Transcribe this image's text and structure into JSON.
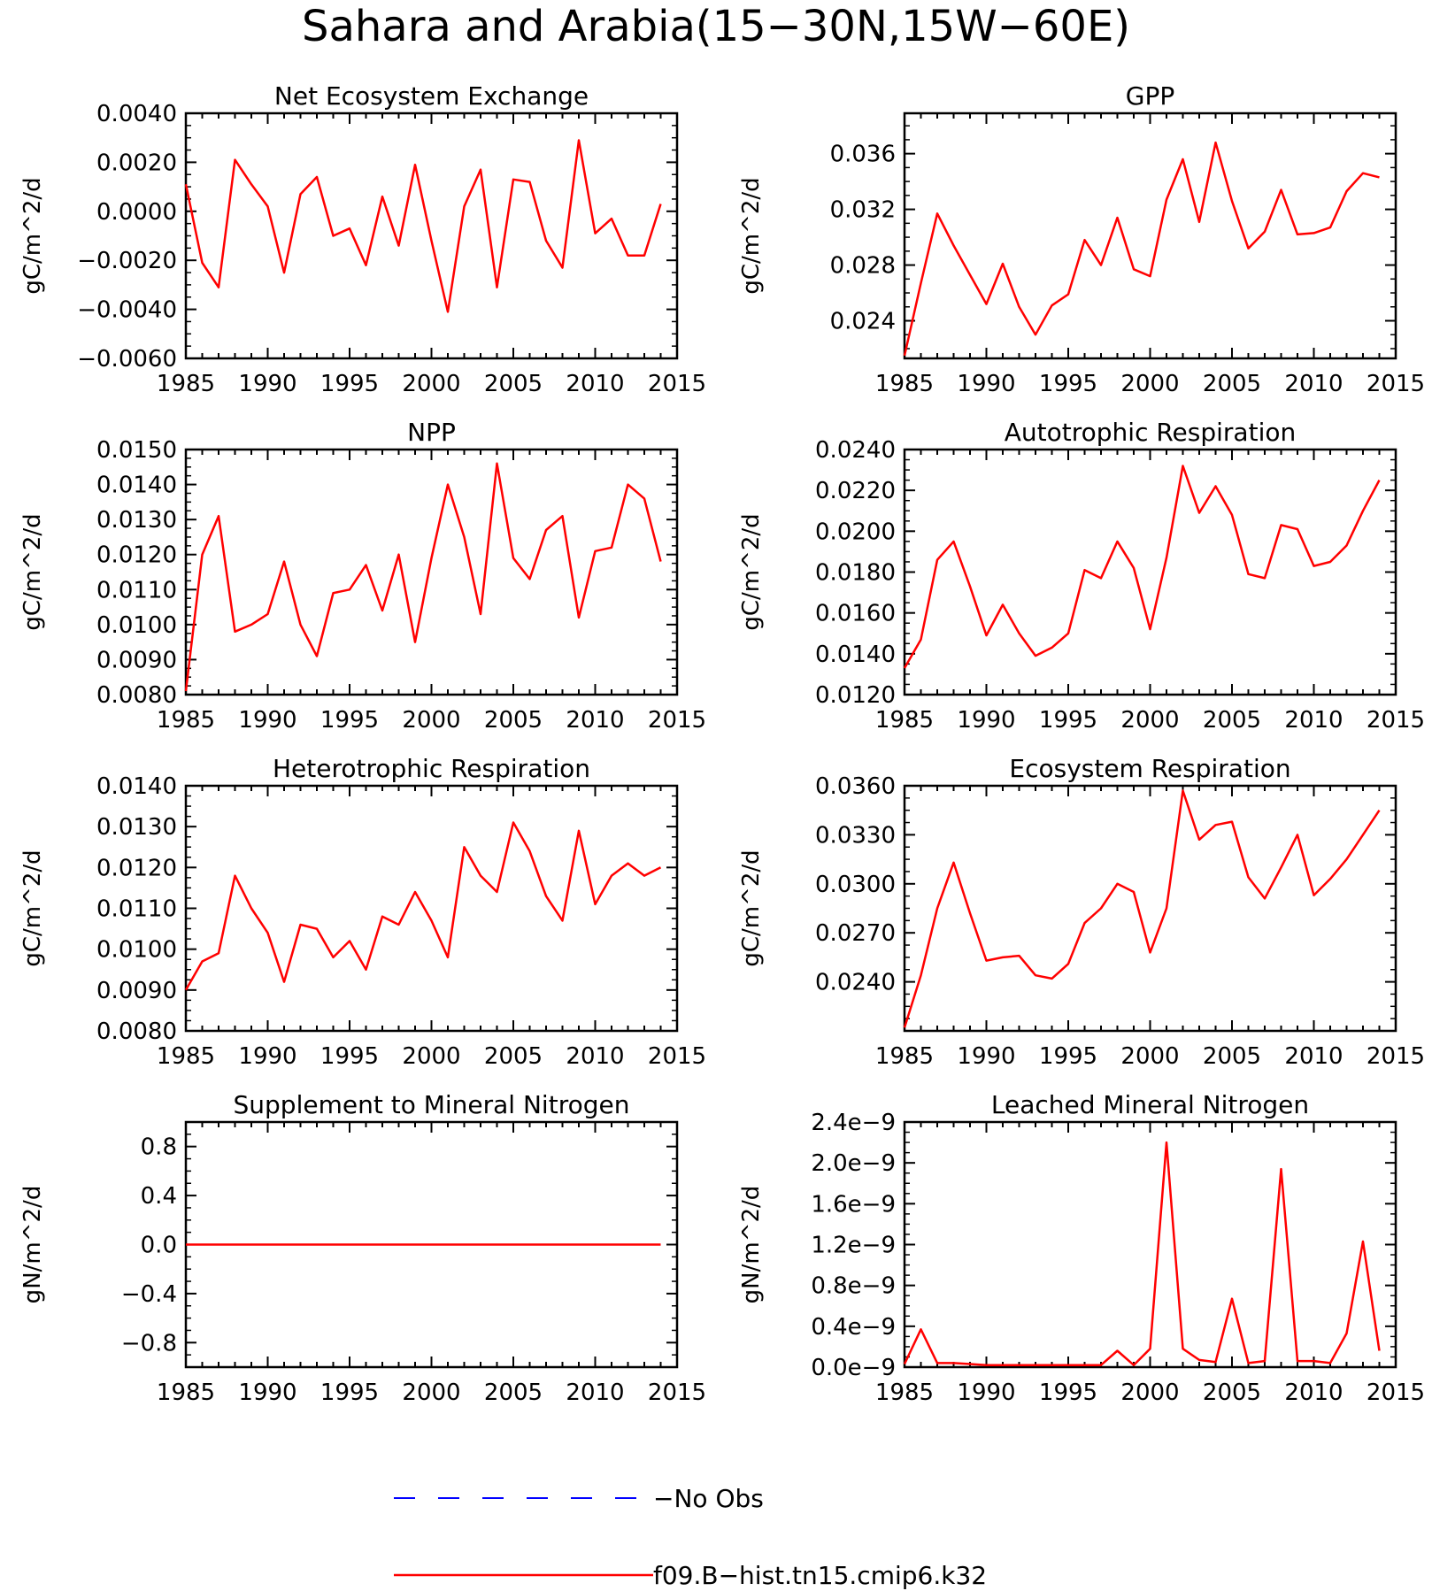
{
  "figure": {
    "title": "Sahara and Arabia(15−30N,15W−60E)"
  },
  "legend": [
    {
      "label": "−No Obs",
      "color": "#0000ff",
      "dash": true
    },
    {
      "label": "f09.B−hist.tn15.cmip6.k32",
      "color": "#ff0000",
      "dash": false
    }
  ],
  "chart_data": [
    {
      "type": "line",
      "title": "Net Ecosystem Exchange",
      "ylabel": "gC/m^2/d",
      "xlim": [
        1985,
        2015
      ],
      "ylim": [
        -0.006,
        0.004
      ],
      "xticks": [
        "1985",
        "1990",
        "1995",
        "2000",
        "2005",
        "2010",
        "2015"
      ],
      "yticks": [
        {
          "v": 0.004,
          "label": "0.0040"
        },
        {
          "v": 0.002,
          "label": "0.0020"
        },
        {
          "v": 0.0,
          "label": "0.0000"
        },
        {
          "v": -0.002,
          "label": "−0.0020"
        },
        {
          "v": -0.004,
          "label": "−0.0040"
        },
        {
          "v": -0.006,
          "label": "−0.0060"
        }
      ],
      "series": [
        {
          "color": "#ff0000",
          "x": [
            1985,
            1986,
            1987,
            1988,
            1989,
            1990,
            1991,
            1992,
            1993,
            1994,
            1995,
            1996,
            1997,
            1998,
            1999,
            2000,
            2001,
            2002,
            2003,
            2004,
            2005,
            2006,
            2007,
            2008,
            2009,
            2010,
            2011,
            2012,
            2013,
            2014
          ],
          "y": [
            0.0011,
            -0.0021,
            -0.0031,
            0.0021,
            0.0011,
            0.0002,
            -0.0025,
            0.0007,
            0.0014,
            -0.001,
            -0.0007,
            -0.0022,
            0.0006,
            -0.0014,
            0.0019,
            -0.0012,
            -0.0041,
            0.0002,
            0.0017,
            -0.0031,
            0.0013,
            0.0012,
            -0.0012,
            -0.0023,
            0.0029,
            -0.0009,
            -0.0003,
            -0.0018,
            -0.0018,
            0.0003
          ]
        }
      ]
    },
    {
      "type": "line",
      "title": "GPP",
      "ylabel": "gC/m^2/d",
      "xlim": [
        1985,
        2015
      ],
      "ylim": [
        0.0213,
        0.0389
      ],
      "xticks": [
        "1985",
        "1990",
        "1995",
        "2000",
        "2005",
        "2010",
        "2015"
      ],
      "yticks": [
        {
          "v": 0.036,
          "label": "0.036"
        },
        {
          "v": 0.032,
          "label": "0.032"
        },
        {
          "v": 0.028,
          "label": "0.028"
        },
        {
          "v": 0.024,
          "label": "0.024"
        }
      ],
      "series": [
        {
          "color": "#ff0000",
          "x": [
            1985,
            1986,
            1987,
            1988,
            1989,
            1990,
            1991,
            1992,
            1993,
            1994,
            1995,
            1996,
            1997,
            1998,
            1999,
            2000,
            2001,
            2002,
            2003,
            2004,
            2005,
            2006,
            2007,
            2008,
            2009,
            2010,
            2011,
            2012,
            2013,
            2014
          ],
          "y": [
            0.0215,
            0.0267,
            0.0317,
            0.0294,
            0.0273,
            0.0252,
            0.0281,
            0.025,
            0.023,
            0.0251,
            0.0259,
            0.0298,
            0.028,
            0.0314,
            0.0277,
            0.0272,
            0.0327,
            0.0356,
            0.0311,
            0.0368,
            0.0326,
            0.0292,
            0.0304,
            0.0334,
            0.0302,
            0.0303,
            0.0307,
            0.0333,
            0.0346,
            0.0343
          ]
        }
      ]
    },
    {
      "type": "line",
      "title": "NPP",
      "ylabel": "gC/m^2/d",
      "xlim": [
        1985,
        2015
      ],
      "ylim": [
        0.008,
        0.015
      ],
      "xticks": [
        "1985",
        "1990",
        "1995",
        "2000",
        "2005",
        "2010",
        "2015"
      ],
      "yticks": [
        {
          "v": 0.015,
          "label": "0.0150"
        },
        {
          "v": 0.014,
          "label": "0.0140"
        },
        {
          "v": 0.013,
          "label": "0.0130"
        },
        {
          "v": 0.012,
          "label": "0.0120"
        },
        {
          "v": 0.011,
          "label": "0.0110"
        },
        {
          "v": 0.01,
          "label": "0.0100"
        },
        {
          "v": 0.009,
          "label": "0.0090"
        },
        {
          "v": 0.008,
          "label": "0.0080"
        }
      ],
      "series": [
        {
          "color": "#ff0000",
          "x": [
            1985,
            1986,
            1987,
            1988,
            1989,
            1990,
            1991,
            1992,
            1993,
            1994,
            1995,
            1996,
            1997,
            1998,
            1999,
            2000,
            2001,
            2002,
            2003,
            2004,
            2005,
            2006,
            2007,
            2008,
            2009,
            2010,
            2011,
            2012,
            2013,
            2014
          ],
          "y": [
            0.0081,
            0.012,
            0.0131,
            0.0098,
            0.01,
            0.0103,
            0.0118,
            0.01,
            0.0091,
            0.0109,
            0.011,
            0.0117,
            0.0104,
            0.012,
            0.0095,
            0.0119,
            0.014,
            0.0125,
            0.0103,
            0.0146,
            0.0119,
            0.0113,
            0.0127,
            0.0131,
            0.0102,
            0.0121,
            0.0122,
            0.014,
            0.0136,
            0.0118
          ]
        }
      ]
    },
    {
      "type": "line",
      "title": "Autotrophic Respiration",
      "ylabel": "gC/m^2/d",
      "xlim": [
        1985,
        2015
      ],
      "ylim": [
        0.012,
        0.024
      ],
      "xticks": [
        "1985",
        "1990",
        "1995",
        "2000",
        "2005",
        "2010",
        "2015"
      ],
      "yticks": [
        {
          "v": 0.024,
          "label": "0.0240"
        },
        {
          "v": 0.022,
          "label": "0.0220"
        },
        {
          "v": 0.02,
          "label": "0.0200"
        },
        {
          "v": 0.018,
          "label": "0.0180"
        },
        {
          "v": 0.016,
          "label": "0.0160"
        },
        {
          "v": 0.014,
          "label": "0.0140"
        },
        {
          "v": 0.012,
          "label": "0.0120"
        }
      ],
      "series": [
        {
          "color": "#ff0000",
          "x": [
            1985,
            1986,
            1987,
            1988,
            1989,
            1990,
            1991,
            1992,
            1993,
            1994,
            1995,
            1996,
            1997,
            1998,
            1999,
            2000,
            2001,
            2002,
            2003,
            2004,
            2005,
            2006,
            2007,
            2008,
            2009,
            2010,
            2011,
            2012,
            2013,
            2014
          ],
          "y": [
            0.0133,
            0.0147,
            0.0186,
            0.0195,
            0.0173,
            0.0149,
            0.0164,
            0.015,
            0.0139,
            0.0143,
            0.015,
            0.0181,
            0.0177,
            0.0195,
            0.0182,
            0.0152,
            0.0187,
            0.0232,
            0.0209,
            0.0222,
            0.0208,
            0.0179,
            0.0177,
            0.0203,
            0.0201,
            0.0183,
            0.0185,
            0.0193,
            0.021,
            0.0225
          ]
        }
      ]
    },
    {
      "type": "line",
      "title": "Heterotrophic Respiration",
      "ylabel": "gC/m^2/d",
      "xlim": [
        1985,
        2015
      ],
      "ylim": [
        0.008,
        0.014
      ],
      "xticks": [
        "1985",
        "1990",
        "1995",
        "2000",
        "2005",
        "2010",
        "2015"
      ],
      "yticks": [
        {
          "v": 0.014,
          "label": "0.0140"
        },
        {
          "v": 0.013,
          "label": "0.0130"
        },
        {
          "v": 0.012,
          "label": "0.0120"
        },
        {
          "v": 0.011,
          "label": "0.0110"
        },
        {
          "v": 0.01,
          "label": "0.0100"
        },
        {
          "v": 0.009,
          "label": "0.0090"
        },
        {
          "v": 0.008,
          "label": "0.0080"
        }
      ],
      "series": [
        {
          "color": "#ff0000",
          "x": [
            1985,
            1986,
            1987,
            1988,
            1989,
            1990,
            1991,
            1992,
            1993,
            1994,
            1995,
            1996,
            1997,
            1998,
            1999,
            2000,
            2001,
            2002,
            2003,
            2004,
            2005,
            2006,
            2007,
            2008,
            2009,
            2010,
            2011,
            2012,
            2013,
            2014
          ],
          "y": [
            0.009,
            0.0097,
            0.0099,
            0.0118,
            0.011,
            0.0104,
            0.0092,
            0.0106,
            0.0105,
            0.0098,
            0.0102,
            0.0095,
            0.0108,
            0.0106,
            0.0114,
            0.0107,
            0.0098,
            0.0125,
            0.0118,
            0.0114,
            0.0131,
            0.0124,
            0.0113,
            0.0107,
            0.0129,
            0.0111,
            0.0118,
            0.0121,
            0.0118,
            0.012
          ]
        }
      ]
    },
    {
      "type": "line",
      "title": "Ecosystem Respiration",
      "ylabel": "gC/m^2/d",
      "xlim": [
        1985,
        2015
      ],
      "ylim": [
        0.021,
        0.036
      ],
      "xticks": [
        "1985",
        "1990",
        "1995",
        "2000",
        "2005",
        "2010",
        "2015"
      ],
      "yticks": [
        {
          "v": 0.036,
          "label": "0.0360"
        },
        {
          "v": 0.033,
          "label": "0.0330"
        },
        {
          "v": 0.03,
          "label": "0.0300"
        },
        {
          "v": 0.027,
          "label": "0.0270"
        },
        {
          "v": 0.024,
          "label": "0.0240"
        }
      ],
      "series": [
        {
          "color": "#ff0000",
          "x": [
            1985,
            1986,
            1987,
            1988,
            1989,
            1990,
            1991,
            1992,
            1993,
            1994,
            1995,
            1996,
            1997,
            1998,
            1999,
            2000,
            2001,
            2002,
            2003,
            2004,
            2005,
            2006,
            2007,
            2008,
            2009,
            2010,
            2011,
            2012,
            2013,
            2014
          ],
          "y": [
            0.0212,
            0.0244,
            0.0285,
            0.0313,
            0.0282,
            0.0253,
            0.0255,
            0.0256,
            0.0244,
            0.0242,
            0.0251,
            0.0276,
            0.0285,
            0.03,
            0.0295,
            0.0258,
            0.0285,
            0.0357,
            0.0327,
            0.0336,
            0.0338,
            0.0304,
            0.0291,
            0.031,
            0.033,
            0.0293,
            0.0303,
            0.0315,
            0.033,
            0.0345
          ]
        }
      ]
    },
    {
      "type": "line",
      "title": "Supplement to Mineral Nitrogen",
      "ylabel": "gN/m^2/d",
      "xlim": [
        1985,
        2015
      ],
      "ylim": [
        -1.0,
        1.0
      ],
      "xticks": [
        "1985",
        "1990",
        "1995",
        "2000",
        "2005",
        "2010",
        "2015"
      ],
      "yticks": [
        {
          "v": 0.8,
          "label": "0.8"
        },
        {
          "v": 0.4,
          "label": "0.4"
        },
        {
          "v": 0.0,
          "label": "0.0"
        },
        {
          "v": -0.4,
          "label": "−0.4"
        },
        {
          "v": -0.8,
          "label": "−0.8"
        }
      ],
      "series": [
        {
          "color": "#ff0000",
          "x": [
            1985,
            1986,
            1987,
            1988,
            1989,
            1990,
            1991,
            1992,
            1993,
            1994,
            1995,
            1996,
            1997,
            1998,
            1999,
            2000,
            2001,
            2002,
            2003,
            2004,
            2005,
            2006,
            2007,
            2008,
            2009,
            2010,
            2011,
            2012,
            2013,
            2014
          ],
          "y": [
            0,
            0,
            0,
            0,
            0,
            0,
            0,
            0,
            0,
            0,
            0,
            0,
            0,
            0,
            0,
            0,
            0,
            0,
            0,
            0,
            0,
            0,
            0,
            0,
            0,
            0,
            0,
            0,
            0,
            0
          ]
        }
      ]
    },
    {
      "type": "line",
      "title": "Leached Mineral Nitrogen",
      "ylabel": "gN/m^2/d",
      "xlim": [
        1985,
        2015
      ],
      "ylim": [
        0.0,
        2.4
      ],
      "yunit": "e-9",
      "xticks": [
        "1985",
        "1990",
        "1995",
        "2000",
        "2005",
        "2010",
        "2015"
      ],
      "yticks": [
        {
          "v": 2.4,
          "label": "2.4e−9"
        },
        {
          "v": 2.0,
          "label": "2.0e−9"
        },
        {
          "v": 1.6,
          "label": "1.6e−9"
        },
        {
          "v": 1.2,
          "label": "1.2e−9"
        },
        {
          "v": 0.8,
          "label": "0.8e−9"
        },
        {
          "v": 0.4,
          "label": "0.4e−9"
        },
        {
          "v": 0.0,
          "label": "0.0e−9"
        }
      ],
      "series": [
        {
          "color": "#ff0000",
          "x": [
            1985,
            1986,
            1987,
            1988,
            1989,
            1990,
            1991,
            1992,
            1993,
            1994,
            1995,
            1996,
            1997,
            1998,
            1999,
            2000,
            2001,
            2002,
            2003,
            2004,
            2005,
            2006,
            2007,
            2008,
            2009,
            2010,
            2011,
            2012,
            2013,
            2014
          ],
          "y": [
            0.03,
            0.37,
            0.04,
            0.04,
            0.03,
            0.02,
            0.02,
            0.02,
            0.02,
            0.02,
            0.02,
            0.02,
            0.02,
            0.16,
            0.02,
            0.18,
            2.2,
            0.18,
            0.07,
            0.05,
            0.67,
            0.04,
            0.06,
            1.94,
            0.06,
            0.06,
            0.04,
            0.33,
            1.23,
            0.16
          ]
        }
      ]
    }
  ]
}
